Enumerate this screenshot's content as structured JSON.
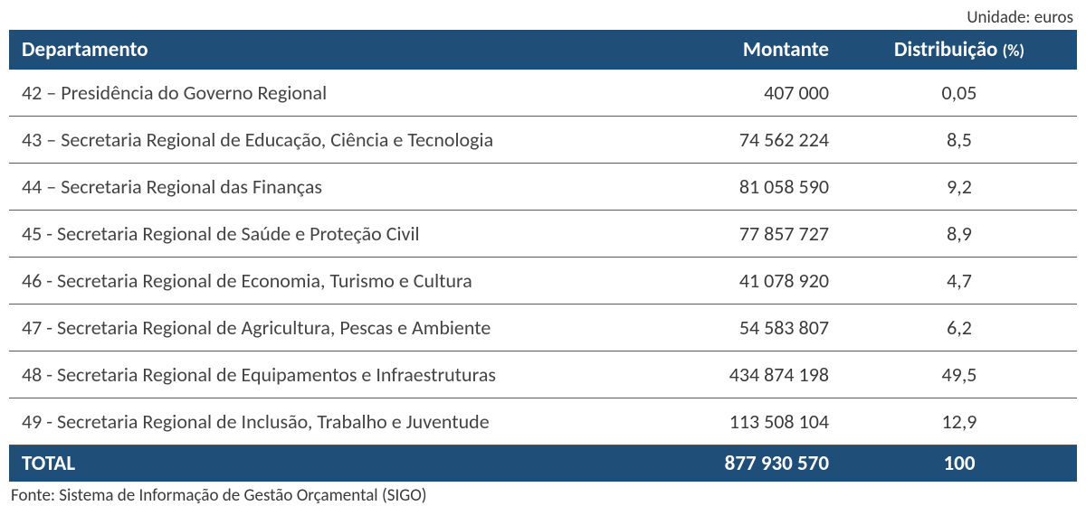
{
  "unit_label": "Unidade: euros",
  "table": {
    "columns": {
      "departamento": "Departamento",
      "montante": "Montante",
      "distribuicao": "Distribuição",
      "distribuicao_suffix": "(%)"
    },
    "rows": [
      {
        "dept": "42 – Presidência do Governo Regional",
        "montante": "407 000",
        "distrib": "0,05"
      },
      {
        "dept": "43 – Secretaria Regional de Educação, Ciência e Tecnologia",
        "montante": "74 562 224",
        "distrib": "8,5"
      },
      {
        "dept": "44 – Secretaria Regional das Finanças",
        "montante": "81 058 590",
        "distrib": "9,2"
      },
      {
        "dept": "45 - Secretaria Regional de Saúde e Proteção Civil",
        "montante": "77 857 727",
        "distrib": "8,9"
      },
      {
        "dept": "46 - Secretaria Regional de Economia, Turismo e Cultura",
        "montante": "41 078 920",
        "distrib": "4,7"
      },
      {
        "dept": "47 - Secretaria Regional de Agricultura, Pescas e Ambiente",
        "montante": "54 583 807",
        "distrib": "6,2"
      },
      {
        "dept": "48 - Secretaria Regional de Equipamentos e Infraestruturas",
        "montante": "434 874 198",
        "distrib": "49,5"
      },
      {
        "dept": "49 - Secretaria Regional de Inclusão, Trabalho e Juventude",
        "montante": "113 508 104",
        "distrib": "12,9"
      }
    ],
    "total": {
      "label": "TOTAL",
      "montante": "877 930 570",
      "distrib": "100"
    },
    "header_bg": "#1f4e79",
    "header_text_color": "#ffffff",
    "row_border_color": "#5a5a5a",
    "body_text_color": "#3a3a3a",
    "body_fontsize": 22,
    "header_fontsize": 23,
    "total_bg": "#1f4e79",
    "total_text_color": "#ffffff",
    "col_widths": {
      "montante": 230,
      "distribuicao": 260
    }
  },
  "footnote": "Fonte: Sistema de Informação de Gestão Orçamental (SIGO)"
}
